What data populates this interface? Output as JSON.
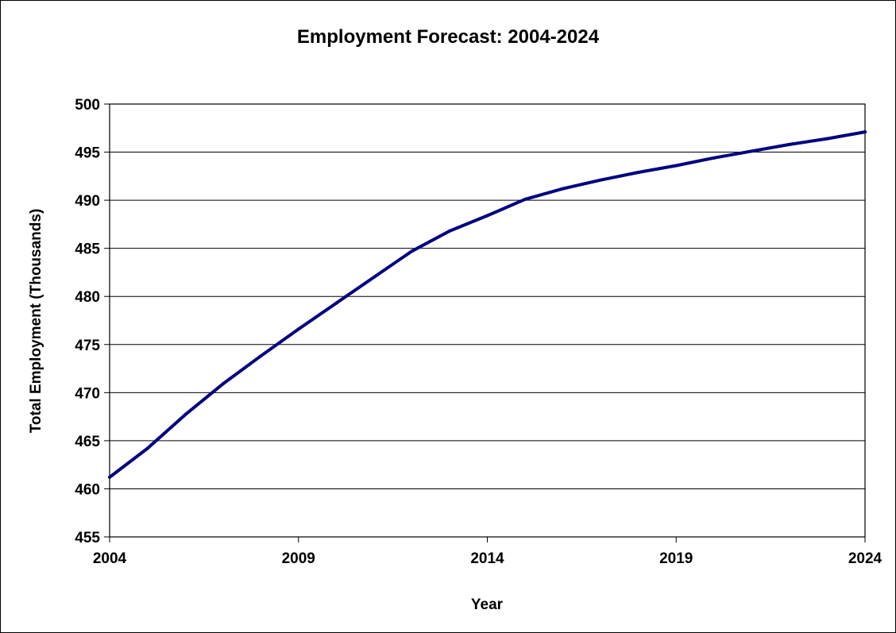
{
  "chart_data": {
    "type": "line",
    "title": "Employment Forecast: 2004-2024",
    "xlabel": "Year",
    "ylabel": "Total Employment (Thousands)",
    "xlim": [
      2004,
      2024
    ],
    "ylim": [
      455,
      500
    ],
    "x_ticks": [
      2004,
      2009,
      2014,
      2019,
      2024
    ],
    "y_ticks": [
      455,
      460,
      465,
      470,
      475,
      480,
      485,
      490,
      495,
      500
    ],
    "grid": true,
    "legend": "none",
    "line_color": "#000080",
    "series": [
      {
        "x": [
          2004,
          2005,
          2006,
          2007,
          2008,
          2009,
          2010,
          2011,
          2012,
          2013,
          2014,
          2015,
          2016,
          2017,
          2018,
          2019,
          2020,
          2021,
          2022,
          2023,
          2024
        ],
        "values": [
          461.2,
          464.2,
          467.7,
          470.9,
          473.8,
          476.6,
          479.3,
          482.0,
          484.7,
          486.8,
          488.4,
          490.1,
          491.2,
          492.1,
          492.9,
          493.6,
          494.4,
          495.1,
          495.8,
          496.4,
          497.1
        ]
      }
    ]
  }
}
